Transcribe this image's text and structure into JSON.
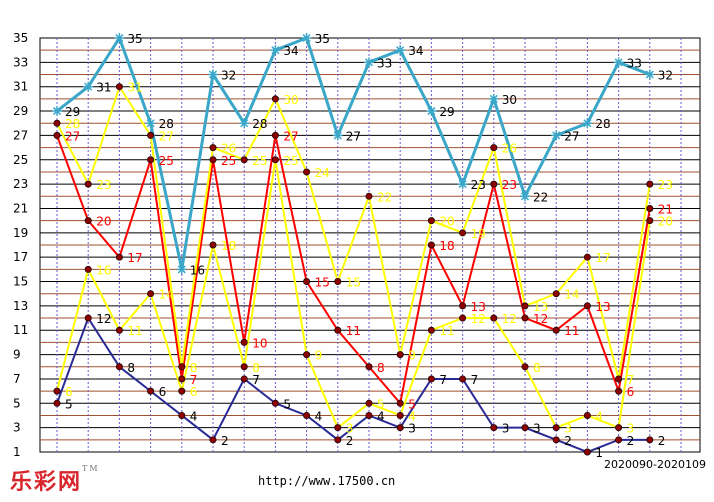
{
  "brand": {
    "logo_text": "乐彩网",
    "tm": "TM",
    "url": "http://www.17500.cn"
  },
  "period_label": "2020090-2020109",
  "chart_data": {
    "type": "line",
    "title": "",
    "xlabel": "",
    "ylabel": "",
    "ylim": [
      1,
      35
    ],
    "yticks": [
      1,
      3,
      5,
      7,
      9,
      11,
      13,
      15,
      17,
      19,
      21,
      23,
      25,
      27,
      29,
      31,
      33,
      35
    ],
    "x_count": 22,
    "grid": true,
    "series": [
      {
        "color": "#3aa6c8",
        "marker": "star",
        "label_color": "#000000",
        "values": [
          29,
          31,
          35,
          28,
          16,
          32,
          28,
          34,
          35,
          27,
          33,
          34,
          29,
          23,
          30,
          22,
          27,
          28,
          33,
          32
        ]
      },
      {
        "color": "#ff0000",
        "marker": "circle",
        "label_color": "#ff0000",
        "values": [
          27,
          20,
          17,
          25,
          7,
          25,
          10,
          27,
          15,
          11,
          8,
          5,
          18,
          13,
          23,
          12,
          11,
          13,
          6,
          21
        ]
      },
      {
        "color": "#ffff00",
        "marker": "circle",
        "label_color": "#ffff00",
        "values": [
          28,
          23,
          31,
          27,
          8,
          26,
          25,
          30,
          24,
          15,
          22,
          9,
          20,
          19,
          26,
          13,
          14,
          17,
          7,
          23
        ]
      },
      {
        "color": "#ffff00",
        "marker": "circle",
        "label_color": "#ffff00",
        "values": [
          6,
          16,
          11,
          14,
          6,
          18,
          8,
          25,
          9,
          3,
          5,
          4,
          11,
          12,
          12,
          8,
          3,
          4,
          3,
          20
        ]
      },
      {
        "color": "#2a2a96",
        "marker": "circle",
        "label_color": "#000000",
        "values": [
          5,
          12,
          8,
          6,
          4,
          2,
          7,
          5,
          4,
          2,
          4,
          3,
          7,
          7,
          3,
          3,
          2,
          1,
          2,
          2
        ]
      }
    ],
    "annotation": "2020090-2020109"
  }
}
